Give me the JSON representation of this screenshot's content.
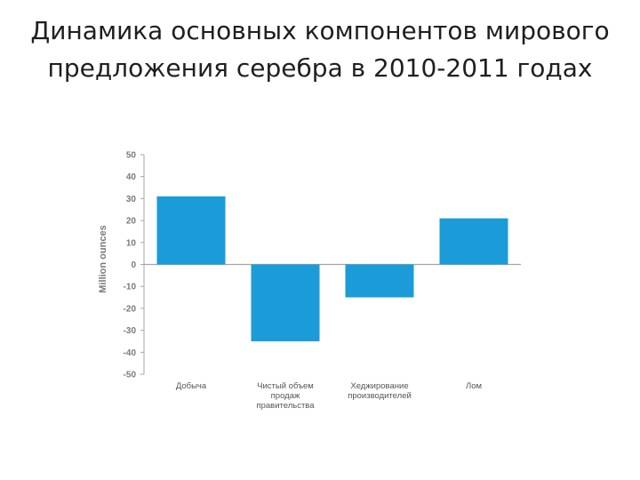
{
  "slide": {
    "title": "Динамика основных компонентов мирового предложения серебра в 2010-2011 годах"
  },
  "colors": {
    "bar": "#1b9bd7",
    "axis": "#a6a6a6",
    "text": "#1f1f1f"
  },
  "chart_data": {
    "type": "bar",
    "title": "",
    "xlabel": "",
    "ylabel": "Million ounces",
    "ylim": [
      -50,
      50
    ],
    "yticks": [
      50,
      40,
      30,
      20,
      10,
      0,
      -10,
      -20,
      -30,
      -40,
      -50
    ],
    "grid": false,
    "categories": [
      [
        "Добыча"
      ],
      [
        "Чистый объем",
        "продаж",
        "правительства"
      ],
      [
        "Хеджирование",
        "производителей"
      ],
      [
        "Лом"
      ]
    ],
    "values": [
      31,
      -35,
      -15,
      21
    ]
  }
}
